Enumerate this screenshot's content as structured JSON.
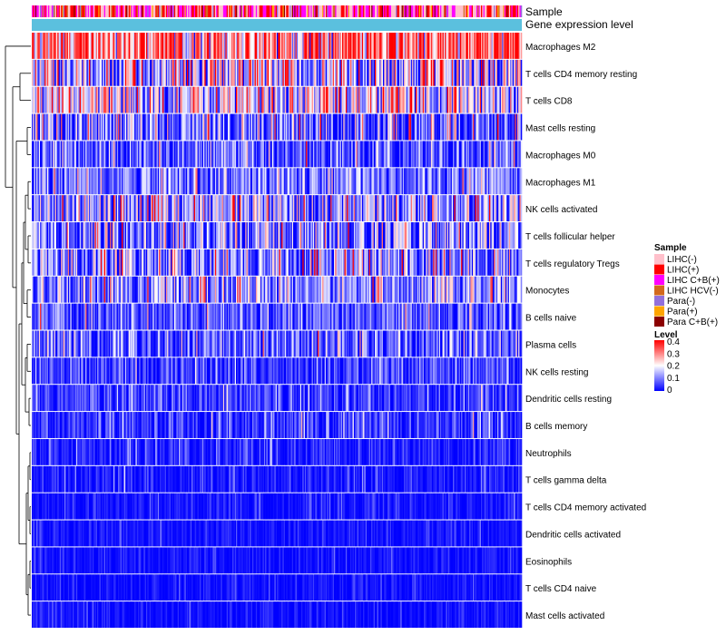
{
  "chart_data": {
    "type": "heatmap",
    "title": "",
    "annotation_tracks": [
      "Sample",
      "Gene expression level"
    ],
    "row_labels": [
      "Macrophages M2",
      "T cells CD4 memory resting",
      "T cells CD8",
      "Mast cells resting",
      "Macrophages M0",
      "Macrophages M1",
      "NK cells activated",
      "T cells follicular helper",
      "T cells regulatory  Tregs",
      "Monocytes",
      "B cells naive",
      "Plasma cells",
      "NK cells resting",
      "Dendritic cells resting",
      "B cells memory",
      "Neutrophils",
      "T cells gamma delta",
      "T cells CD4 memory activated",
      "Dendritic cells activated",
      "Eosinophils",
      "T cells CD4 naive",
      "Mast cells activated"
    ],
    "row_mean_level": [
      0.3,
      0.14,
      0.18,
      0.08,
      0.06,
      0.09,
      0.12,
      0.1,
      0.11,
      0.11,
      0.06,
      0.07,
      0.04,
      0.045,
      0.035,
      0.02,
      0.015,
      0.012,
      0.012,
      0.01,
      0.008,
      0.008
    ],
    "row_variability": [
      0.12,
      0.14,
      0.12,
      0.1,
      0.07,
      0.07,
      0.1,
      0.1,
      0.1,
      0.08,
      0.06,
      0.08,
      0.05,
      0.05,
      0.05,
      0.035,
      0.03,
      0.025,
      0.02,
      0.02,
      0.02,
      0.02
    ],
    "n_samples": 420,
    "sample_legend": {
      "title": "Sample",
      "entries": [
        {
          "label": "LIHC(-)",
          "color": "#ffc0cb"
        },
        {
          "label": "LIHC(+)",
          "color": "#ff0000"
        },
        {
          "label": "LIHC C+B(+)",
          "color": "#ff00ff"
        },
        {
          "label": "LIHC HCV(-)",
          "color": "#d2691e"
        },
        {
          "label": "Para(-)",
          "color": "#9370db"
        },
        {
          "label": "Para(+)",
          "color": "#ffa500"
        },
        {
          "label": "Para C+B(+)",
          "color": "#8b0000"
        }
      ],
      "sample_proportions": [
        0.3,
        0.25,
        0.25,
        0.05,
        0.05,
        0.05,
        0.05
      ]
    },
    "gene_expression_color": "#5bc0de",
    "level_legend": {
      "title": "Level",
      "ticks": [
        "0.4",
        "0.3",
        "0.2",
        "0.1",
        "0"
      ],
      "range": [
        0,
        0.4
      ],
      "colors": [
        "#0000ff",
        "#ffffff",
        "#ff0000"
      ]
    }
  }
}
